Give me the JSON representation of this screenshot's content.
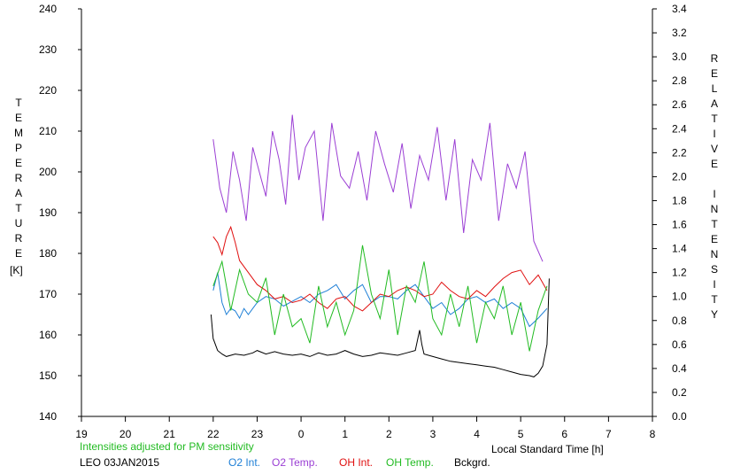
{
  "chart_data": {
    "type": "line",
    "title": "",
    "xlabel": "Local Standard Time [h]",
    "ylabel_left": "TEMPERATURE",
    "ylabel_left_unit": "[K]",
    "ylabel_right": "RELATIVE INTENSITY",
    "xlim": [
      19,
      32
    ],
    "x_tick_values": [
      19,
      20,
      21,
      22,
      23,
      24,
      25,
      26,
      27,
      28,
      29,
      30,
      31,
      32
    ],
    "x_tick_labels": [
      "19",
      "20",
      "21",
      "22",
      "23",
      "0",
      "1",
      "2",
      "3",
      "4",
      "5",
      "6",
      "7",
      "8"
    ],
    "ylim_left": [
      140,
      240
    ],
    "y_left_ticks": [
      140,
      150,
      160,
      170,
      180,
      190,
      200,
      210,
      220,
      230,
      240
    ],
    "ylim_right": [
      0.0,
      3.4
    ],
    "y_right_ticks": [
      0.0,
      0.2,
      0.4,
      0.6,
      0.8,
      1.0,
      1.2,
      1.4,
      1.6,
      1.8,
      2.0,
      2.2,
      2.4,
      2.6,
      2.8,
      3.0,
      3.2,
      3.4
    ],
    "grid": false,
    "legend_position": "bottom",
    "note": "Intensities adjusted for PM sensitivity",
    "station_date": "LEO 03JAN2015",
    "series": [
      {
        "name": "O2 Int.",
        "color": "#1e7fd6",
        "axis": "right",
        "x": [
          22.0,
          22.1,
          22.2,
          22.3,
          22.4,
          22.5,
          22.6,
          22.7,
          22.8,
          22.9,
          23.0,
          23.2,
          23.4,
          23.6,
          23.8,
          24.0,
          24.2,
          24.4,
          24.6,
          24.8,
          25.0,
          25.2,
          25.4,
          25.6,
          25.8,
          26.0,
          26.2,
          26.4,
          26.6,
          26.8,
          27.0,
          27.2,
          27.4,
          27.6,
          27.8,
          28.0,
          28.2,
          28.4,
          28.6,
          28.8,
          29.0,
          29.2,
          29.4,
          29.6
        ],
        "y": [
          1.05,
          1.2,
          0.95,
          0.85,
          0.9,
          0.88,
          0.82,
          0.9,
          0.85,
          0.9,
          0.95,
          1.0,
          0.98,
          0.92,
          0.96,
          1.0,
          0.95,
          1.02,
          1.05,
          1.1,
          0.98,
          1.05,
          1.1,
          0.95,
          1.0,
          1.0,
          0.98,
          1.05,
          1.1,
          1.0,
          0.9,
          0.95,
          0.85,
          0.9,
          0.98,
          1.0,
          0.95,
          0.98,
          0.9,
          0.95,
          0.9,
          0.75,
          0.82,
          0.9
        ]
      },
      {
        "name": "O2 Temp.",
        "color": "#9b3fd4",
        "axis": "left",
        "x": [
          22.0,
          22.15,
          22.3,
          22.45,
          22.6,
          22.75,
          22.9,
          23.05,
          23.2,
          23.35,
          23.5,
          23.65,
          23.8,
          23.95,
          24.1,
          24.3,
          24.5,
          24.7,
          24.9,
          25.1,
          25.3,
          25.5,
          25.7,
          25.9,
          26.1,
          26.3,
          26.5,
          26.7,
          26.9,
          27.1,
          27.3,
          27.5,
          27.7,
          27.9,
          28.1,
          28.3,
          28.5,
          28.7,
          28.9,
          29.1,
          29.3,
          29.5
        ],
        "y": [
          208,
          196,
          190,
          205,
          198,
          188,
          206,
          200,
          194,
          210,
          203,
          192,
          214,
          198,
          206,
          210,
          188,
          212,
          199,
          196,
          205,
          193,
          210,
          202,
          195,
          207,
          191,
          204,
          198,
          211,
          193,
          208,
          185,
          203,
          198,
          212,
          188,
          202,
          196,
          205,
          183,
          178
        ]
      },
      {
        "name": "OH Int.",
        "color": "#e01010",
        "axis": "right",
        "x": [
          22.0,
          22.1,
          22.2,
          22.3,
          22.4,
          22.5,
          22.6,
          22.8,
          23.0,
          23.2,
          23.4,
          23.6,
          23.8,
          24.0,
          24.2,
          24.4,
          24.6,
          24.8,
          25.0,
          25.2,
          25.4,
          25.6,
          25.8,
          26.0,
          26.2,
          26.4,
          26.6,
          26.8,
          27.0,
          27.2,
          27.4,
          27.6,
          27.8,
          28.0,
          28.2,
          28.4,
          28.6,
          28.8,
          29.0,
          29.2,
          29.4,
          29.6
        ],
        "y": [
          1.5,
          1.45,
          1.35,
          1.5,
          1.58,
          1.45,
          1.3,
          1.2,
          1.1,
          1.05,
          0.98,
          1.0,
          0.95,
          0.97,
          1.02,
          0.95,
          0.9,
          0.98,
          1.0,
          0.92,
          0.88,
          0.95,
          1.02,
          1.0,
          1.05,
          1.08,
          1.05,
          1.0,
          1.02,
          1.12,
          1.05,
          1.0,
          0.98,
          1.05,
          1.0,
          1.08,
          1.15,
          1.2,
          1.22,
          1.1,
          1.18,
          1.05
        ]
      },
      {
        "name": "OH Temp.",
        "color": "#22bb22",
        "axis": "left",
        "x": [
          22.0,
          22.2,
          22.4,
          22.6,
          22.8,
          23.0,
          23.2,
          23.4,
          23.6,
          23.8,
          24.0,
          24.2,
          24.4,
          24.6,
          24.8,
          25.0,
          25.2,
          25.4,
          25.6,
          25.8,
          26.0,
          26.2,
          26.4,
          26.6,
          26.8,
          27.0,
          27.2,
          27.4,
          27.6,
          27.8,
          28.0,
          28.2,
          28.4,
          28.6,
          28.8,
          29.0,
          29.2,
          29.4,
          29.6
        ],
        "y": [
          172,
          178,
          166,
          176,
          170,
          168,
          174,
          160,
          170,
          162,
          164,
          158,
          172,
          162,
          168,
          160,
          166,
          182,
          170,
          164,
          176,
          160,
          172,
          168,
          178,
          164,
          160,
          170,
          162,
          172,
          158,
          168,
          164,
          172,
          160,
          168,
          156,
          166,
          172
        ]
      },
      {
        "name": "Bckgrd.",
        "color": "#000000",
        "axis": "right",
        "x": [
          21.95,
          22.0,
          22.1,
          22.2,
          22.3,
          22.5,
          22.7,
          22.9,
          23.0,
          23.2,
          23.4,
          23.6,
          23.8,
          24.0,
          24.2,
          24.4,
          24.6,
          24.8,
          25.0,
          25.2,
          25.4,
          25.6,
          25.8,
          26.0,
          26.2,
          26.4,
          26.6,
          26.7,
          26.75,
          26.8,
          27.0,
          27.2,
          27.4,
          27.6,
          27.8,
          28.0,
          28.2,
          28.4,
          28.6,
          28.8,
          29.0,
          29.2,
          29.3,
          29.4,
          29.5,
          29.6,
          29.65
        ],
        "y": [
          0.85,
          0.65,
          0.55,
          0.52,
          0.5,
          0.52,
          0.51,
          0.53,
          0.55,
          0.52,
          0.54,
          0.52,
          0.51,
          0.52,
          0.5,
          0.53,
          0.51,
          0.52,
          0.55,
          0.52,
          0.5,
          0.51,
          0.53,
          0.52,
          0.51,
          0.53,
          0.55,
          0.72,
          0.6,
          0.52,
          0.5,
          0.48,
          0.46,
          0.45,
          0.44,
          0.43,
          0.42,
          0.41,
          0.39,
          0.37,
          0.35,
          0.34,
          0.33,
          0.36,
          0.42,
          0.6,
          1.15
        ]
      }
    ]
  }
}
